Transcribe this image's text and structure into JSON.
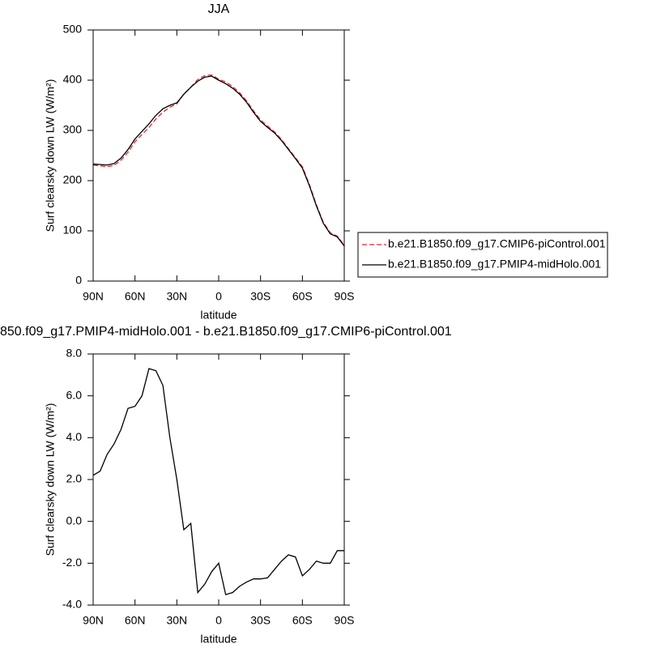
{
  "chart_data": [
    {
      "type": "line",
      "title": "JJA",
      "xlabel": "latitude",
      "ylabel": "Surf clearsky down LW (W/m²)",
      "x": [
        90,
        85,
        80,
        75,
        70,
        65,
        60,
        55,
        50,
        45,
        40,
        35,
        30,
        25,
        20,
        15,
        10,
        5,
        0,
        -5,
        -10,
        -15,
        -20,
        -25,
        -30,
        -35,
        -40,
        -45,
        -50,
        -55,
        -60,
        -65,
        -70,
        -75,
        -80,
        -85,
        -90
      ],
      "xlim": [
        90,
        -90
      ],
      "xticks": [
        {
          "value": 90,
          "label": "90N"
        },
        {
          "value": 60,
          "label": "60N"
        },
        {
          "value": 30,
          "label": "30N"
        },
        0,
        {
          "value": -30,
          "label": "30S"
        },
        {
          "value": -60,
          "label": "60S"
        },
        {
          "value": -90,
          "label": "90S"
        }
      ],
      "ylim": [
        0,
        500
      ],
      "yticks": [
        0,
        100,
        200,
        300,
        400,
        500
      ],
      "legend": "right",
      "series": [
        {
          "name": "b.e21.B1850.f09_g17.CMIP6-piControl.001",
          "color": "#e8262a",
          "dash": true,
          "values": [
            230.8,
            229.6,
            227.8,
            230.3,
            240.6,
            256.6,
            277.5,
            292,
            305.7,
            322.8,
            336.5,
            346,
            353,
            372.4,
            386.1,
            401.4,
            409,
            410.4,
            402,
            396.5,
            387.4,
            375.1,
            358.9,
            338.8,
            320.8,
            308.7,
            297.3,
            281.9,
            263.6,
            245.7,
            227.6,
            192.3,
            151.9,
            117,
            96,
            89.4,
            71.4
          ]
        },
        {
          "name": "b.e21.B1850.f09_g17.PMIP4-midHolo.001",
          "color": "#000000",
          "dash": false,
          "values": [
            233,
            232,
            231,
            234,
            245,
            262,
            283,
            298,
            313,
            330,
            343,
            350,
            355,
            372,
            386,
            398,
            406,
            408,
            400,
            393,
            384,
            372,
            356,
            336,
            318,
            306,
            295,
            280,
            262,
            244,
            225,
            190,
            150,
            115,
            94,
            88,
            70
          ]
        }
      ]
    },
    {
      "type": "line",
      "title": "850.f09_g17.PMIP4-midHolo.001 - b.e21.B1850.f09_g17.CMIP6-piControl.001",
      "xlabel": "latitude",
      "ylabel": "Surf clearsky down LW (W/m²)",
      "x": [
        90,
        85,
        80,
        75,
        70,
        65,
        60,
        55,
        50,
        45,
        40,
        35,
        30,
        25,
        20,
        15,
        10,
        5,
        0,
        -5,
        -10,
        -15,
        -20,
        -25,
        -30,
        -35,
        -40,
        -45,
        -50,
        -55,
        -60,
        -65,
        -70,
        -75,
        -80,
        -85,
        -90
      ],
      "xlim": [
        90,
        -90
      ],
      "xticks": [
        {
          "value": 90,
          "label": "90N"
        },
        {
          "value": 60,
          "label": "60N"
        },
        {
          "value": 30,
          "label": "30N"
        },
        0,
        {
          "value": -30,
          "label": "30S"
        },
        {
          "value": -60,
          "label": "60S"
        },
        {
          "value": -90,
          "label": "90S"
        }
      ],
      "ylim": [
        -4,
        8
      ],
      "yticks": [
        {
          "value": -4,
          "label": "-4.0"
        },
        {
          "value": -2,
          "label": "-2.0"
        },
        {
          "value": 0,
          "label": "0.0"
        },
        {
          "value": 2,
          "label": "2.0"
        },
        {
          "value": 4,
          "label": "4.0"
        },
        {
          "value": 6,
          "label": "6.0"
        },
        {
          "value": 8,
          "label": "8.0"
        }
      ],
      "series": [
        {
          "color": "#000000",
          "dash": false,
          "values": [
            2.2,
            2.4,
            3.2,
            3.7,
            4.4,
            5.4,
            5.5,
            6.0,
            7.3,
            7.2,
            6.5,
            4.0,
            2.0,
            -0.4,
            -0.1,
            -3.4,
            -3.0,
            -2.4,
            -2.0,
            -3.5,
            -3.4,
            -3.1,
            -2.9,
            -2.75,
            -2.75,
            -2.7,
            -2.3,
            -1.9,
            -1.6,
            -1.7,
            -2.6,
            -2.3,
            -1.9,
            -2.0,
            -2.0,
            -1.4,
            -1.4
          ]
        }
      ]
    }
  ]
}
